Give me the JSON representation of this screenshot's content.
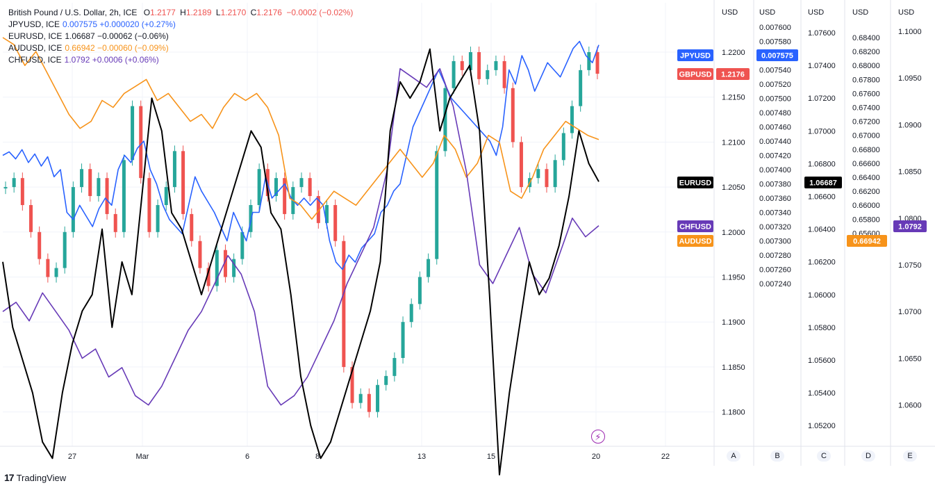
{
  "legend": {
    "main": {
      "title": "British Pound / U.S. Dollar, 2h, ICE",
      "o_label": "O",
      "o": "1.2177",
      "h_label": "H",
      "h": "1.2189",
      "l_label": "L",
      "l": "1.2170",
      "c_label": "C",
      "c": "1.2176",
      "chg": "−0.0002 (−0.02%)"
    },
    "rows": [
      {
        "symbol": "JPYUSD, ICE",
        "value": "0.007575",
        "chg": "+0.000020 (+0.27%)",
        "color": "#2962ff"
      },
      {
        "symbol": "EURUSD, ICE",
        "value": "1.06687",
        "chg": "−0.00062 (−0.06%)",
        "color": "#131722"
      },
      {
        "symbol": "AUDUSD, ICE",
        "value": "0.66942",
        "chg": "−0.00060 (−0.09%)",
        "color": "#f7931a"
      },
      {
        "symbol": "CHFUSD, ICE",
        "value": "1.0792",
        "chg": "+0.0006 (+0.06%)",
        "color": "#673ab7"
      }
    ]
  },
  "colors": {
    "gbp_up": "#26a69a",
    "gbp_down": "#ef5350",
    "jpy": "#2962ff",
    "eur": "#000000",
    "aud": "#f7931a",
    "chf": "#673ab7",
    "grid": "#f0f3fa",
    "axis": "#e0e3eb"
  },
  "chart_data": {
    "type": "line",
    "x_ticks": [
      "27",
      "Mar",
      "6",
      "8",
      "13",
      "15",
      "20",
      "22"
    ],
    "axes": [
      {
        "id": "A",
        "unit": "USD",
        "ticks": [
          "1.2200",
          "1.2150",
          "1.2100",
          "1.2050",
          "1.2000",
          "1.1950",
          "1.1900",
          "1.1850",
          "1.1800"
        ]
      },
      {
        "id": "B",
        "unit": "USD",
        "ticks": [
          "0.007600",
          "0.007580",
          "0.007560",
          "0.007540",
          "0.007520",
          "0.007500",
          "0.007480",
          "0.007460",
          "0.007440",
          "0.007420",
          "0.007400",
          "0.007380",
          "0.007360",
          "0.007340",
          "0.007320",
          "0.007300",
          "0.007280",
          "0.007260",
          "0.007240"
        ]
      },
      {
        "id": "C",
        "unit": "USD",
        "ticks": [
          "1.07600",
          "1.07400",
          "1.07200",
          "1.07000",
          "1.06800",
          "1.06600",
          "1.06400",
          "1.06200",
          "1.06000",
          "1.05800",
          "1.05600",
          "1.05400",
          "1.05200"
        ]
      },
      {
        "id": "D",
        "unit": "USD",
        "ticks": [
          "0.68400",
          "0.68200",
          "0.68000",
          "0.67800",
          "0.67600",
          "0.67400",
          "0.67200",
          "0.67000",
          "0.66800",
          "0.66600",
          "0.66400",
          "0.66200",
          "0.66000",
          "0.65800",
          "0.65600"
        ]
      },
      {
        "id": "E",
        "unit": "USD",
        "ticks": [
          "1.1000",
          "1.0950",
          "1.0900",
          "1.0850",
          "1.0800",
          "1.0750",
          "1.0700",
          "1.0650",
          "1.0600"
        ]
      }
    ],
    "price_tags": [
      {
        "name": "JPYUSD",
        "value": "0.007575",
        "color": "#2962ff"
      },
      {
        "name": "GBPUSD",
        "value": "1.2176",
        "color": "#ef5350"
      },
      {
        "name": "EURUSD",
        "value": "1.06687",
        "color": "#000000"
      },
      {
        "name": "CHFUSD",
        "value": "1.0792",
        "color": "#673ab7"
      },
      {
        "name": "AUDUSD",
        "value": "0.66942",
        "color": "#f7931a"
      }
    ],
    "series": [
      {
        "name": "JPYUSD",
        "axis": "B",
        "values": [
          0.00742,
          0.007425,
          0.007415,
          0.007428,
          0.00741,
          0.007422,
          0.007405,
          0.007418,
          0.00739,
          0.0074,
          0.00734,
          0.00733,
          0.00735,
          0.007335,
          0.00732,
          0.007345,
          0.00736,
          0.00735,
          0.0074,
          0.00742,
          0.00741,
          0.00743,
          0.00744,
          0.0074,
          0.00738,
          0.00735,
          0.00733,
          0.00732,
          0.00731,
          0.00735,
          0.00739,
          0.00737,
          0.007355,
          0.00734,
          0.00732,
          0.0073,
          0.00734,
          0.00732,
          0.0073,
          0.00734,
          0.00734,
          0.00739,
          0.00736,
          0.00737,
          0.00738,
          0.00736,
          0.00735,
          0.00736,
          0.00735,
          0.00736,
          0.00735,
          0.0073,
          0.00727,
          0.00726,
          0.00728,
          0.00727,
          0.00729,
          0.0073,
          0.00731,
          0.00734,
          0.00735,
          0.00737,
          0.00738,
          0.00742,
          0.00746,
          0.00748,
          0.0075,
          0.00752,
          0.00754,
          0.00752,
          0.0075,
          0.00749,
          0.00748,
          0.00747,
          0.00746,
          0.00745,
          0.00744,
          0.00742,
          0.00746,
          0.00754,
          0.00752,
          0.00756,
          0.00754,
          0.00751,
          0.00753,
          0.00755,
          0.00754,
          0.00753,
          0.00755,
          0.00757,
          0.00758,
          0.00756,
          0.00755,
          0.007575
        ]
      },
      {
        "name": "GBPUSD",
        "axis": "A",
        "values": [
          1.205,
          1.206,
          1.203,
          1.2,
          1.197,
          1.195,
          1.196,
          1.2,
          1.205,
          1.207,
          1.204,
          1.206,
          1.202,
          1.2,
          1.208,
          1.214,
          1.206,
          1.2,
          1.203,
          1.205,
          1.209,
          1.202,
          1.199,
          1.196,
          1.194,
          1.198,
          1.195,
          1.197,
          1.2,
          1.203,
          1.207,
          1.204,
          1.206,
          1.202,
          1.205,
          1.206,
          1.204,
          1.201,
          1.203,
          1.199,
          1.185,
          1.181,
          1.182,
          1.18,
          1.183,
          1.184,
          1.186,
          1.19,
          1.192,
          1.195,
          1.197,
          1.209,
          1.216,
          1.219,
          1.218,
          1.22,
          1.217,
          1.218,
          1.219,
          1.216,
          1.21,
          1.205,
          1.206,
          1.207,
          1.205,
          1.208,
          1.211,
          1.214,
          1.218,
          1.22,
          1.2176
        ]
      },
      {
        "name": "EURUSD",
        "axis": "C",
        "values": [
          1.062,
          1.058,
          1.056,
          1.054,
          1.051,
          1.05,
          1.054,
          1.057,
          1.059,
          1.06,
          1.064,
          1.058,
          1.062,
          1.06,
          1.066,
          1.072,
          1.07,
          1.065,
          1.064,
          1.062,
          1.06,
          1.062,
          1.064,
          1.066,
          1.068,
          1.07,
          1.069,
          1.065,
          1.064,
          1.06,
          1.055,
          1.052,
          1.05,
          1.051,
          1.053,
          1.055,
          1.057,
          1.059,
          1.062,
          1.07,
          1.073,
          1.072,
          1.073,
          1.075,
          1.07,
          1.072,
          1.073,
          1.074,
          1.07,
          1.06,
          1.049,
          1.054,
          1.058,
          1.062,
          1.06,
          1.061,
          1.063,
          1.066,
          1.07,
          1.068,
          1.0669
        ]
      },
      {
        "name": "AUDUSD",
        "axis": "D",
        "values": [
          0.684,
          0.683,
          0.68,
          0.682,
          0.679,
          0.676,
          0.673,
          0.671,
          0.672,
          0.675,
          0.674,
          0.676,
          0.677,
          0.678,
          0.675,
          0.676,
          0.674,
          0.672,
          0.673,
          0.671,
          0.674,
          0.676,
          0.675,
          0.676,
          0.674,
          0.67,
          0.661,
          0.66,
          0.658,
          0.66,
          0.662,
          0.661,
          0.66,
          0.662,
          0.664,
          0.666,
          0.668,
          0.666,
          0.664,
          0.666,
          0.67,
          0.668,
          0.664,
          0.666,
          0.67,
          0.669,
          0.662,
          0.661,
          0.664,
          0.668,
          0.67,
          0.672,
          0.671,
          0.67,
          0.6694
        ]
      },
      {
        "name": "CHFUSD",
        "axis": "E",
        "values": [
          1.07,
          1.071,
          1.069,
          1.072,
          1.07,
          1.068,
          1.065,
          1.066,
          1.063,
          1.064,
          1.061,
          1.06,
          1.062,
          1.065,
          1.068,
          1.07,
          1.073,
          1.076,
          1.074,
          1.07,
          1.062,
          1.06,
          1.061,
          1.063,
          1.066,
          1.069,
          1.073,
          1.076,
          1.079,
          1.085,
          1.096,
          1.095,
          1.094,
          1.096,
          1.092,
          1.085,
          1.075,
          1.073,
          1.076,
          1.079,
          1.074,
          1.072,
          1.076,
          1.08,
          1.078,
          1.0792
        ]
      }
    ]
  },
  "buttons": {
    "a": "A",
    "b": "B",
    "c": "C",
    "d": "D",
    "e": "E"
  },
  "brand": {
    "text": "TradingView",
    "logo": "17"
  },
  "bolt_icon": "⚡"
}
